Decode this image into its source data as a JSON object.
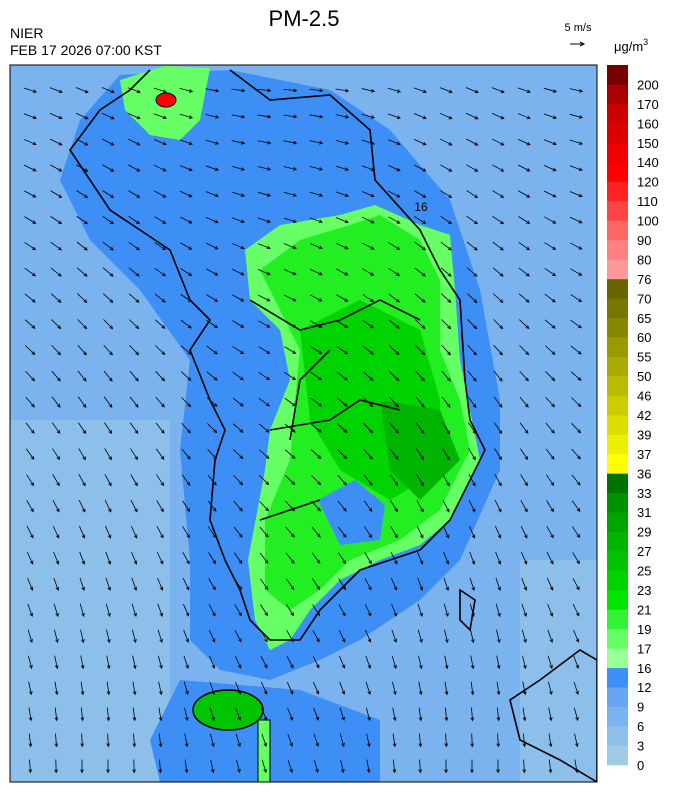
{
  "header": {
    "title": "PM-2.5",
    "source": "NIER",
    "datetime": "FEB 17 2026 07:00 KST"
  },
  "wind_legend": {
    "label": "5 m/s"
  },
  "colorbar": {
    "unit": {
      "base": "μg/m",
      "sup": "3"
    },
    "labels": [
      0,
      3,
      6,
      9,
      12,
      16,
      17,
      19,
      21,
      23,
      25,
      27,
      29,
      31,
      33,
      36,
      37,
      39,
      42,
      46,
      50,
      55,
      60,
      65,
      70,
      76,
      80,
      90,
      100,
      110,
      120,
      140,
      150,
      160,
      170,
      200
    ],
    "colors": [
      "#9ecbe6",
      "#8cc0ea",
      "#7ab3ee",
      "#68a6f2",
      "#3d8ef5",
      "#99ff99",
      "#66ff66",
      "#33f233",
      "#00e600",
      "#00d400",
      "#00c400",
      "#00b400",
      "#00a400",
      "#009200",
      "#007400",
      "#ffff00",
      "#eeee00",
      "#dddd00",
      "#cccc00",
      "#bbbb00",
      "#aaaa00",
      "#999900",
      "#888800",
      "#777700",
      "#666600",
      "#ff9999",
      "#ff8080",
      "#ff6666",
      "#ff4444",
      "#ff2222",
      "#ff0000",
      "#ee0000",
      "#dd0000",
      "#cc0000",
      "#aa0000",
      "#770000"
    ]
  },
  "map": {
    "contour_label": "16"
  }
}
